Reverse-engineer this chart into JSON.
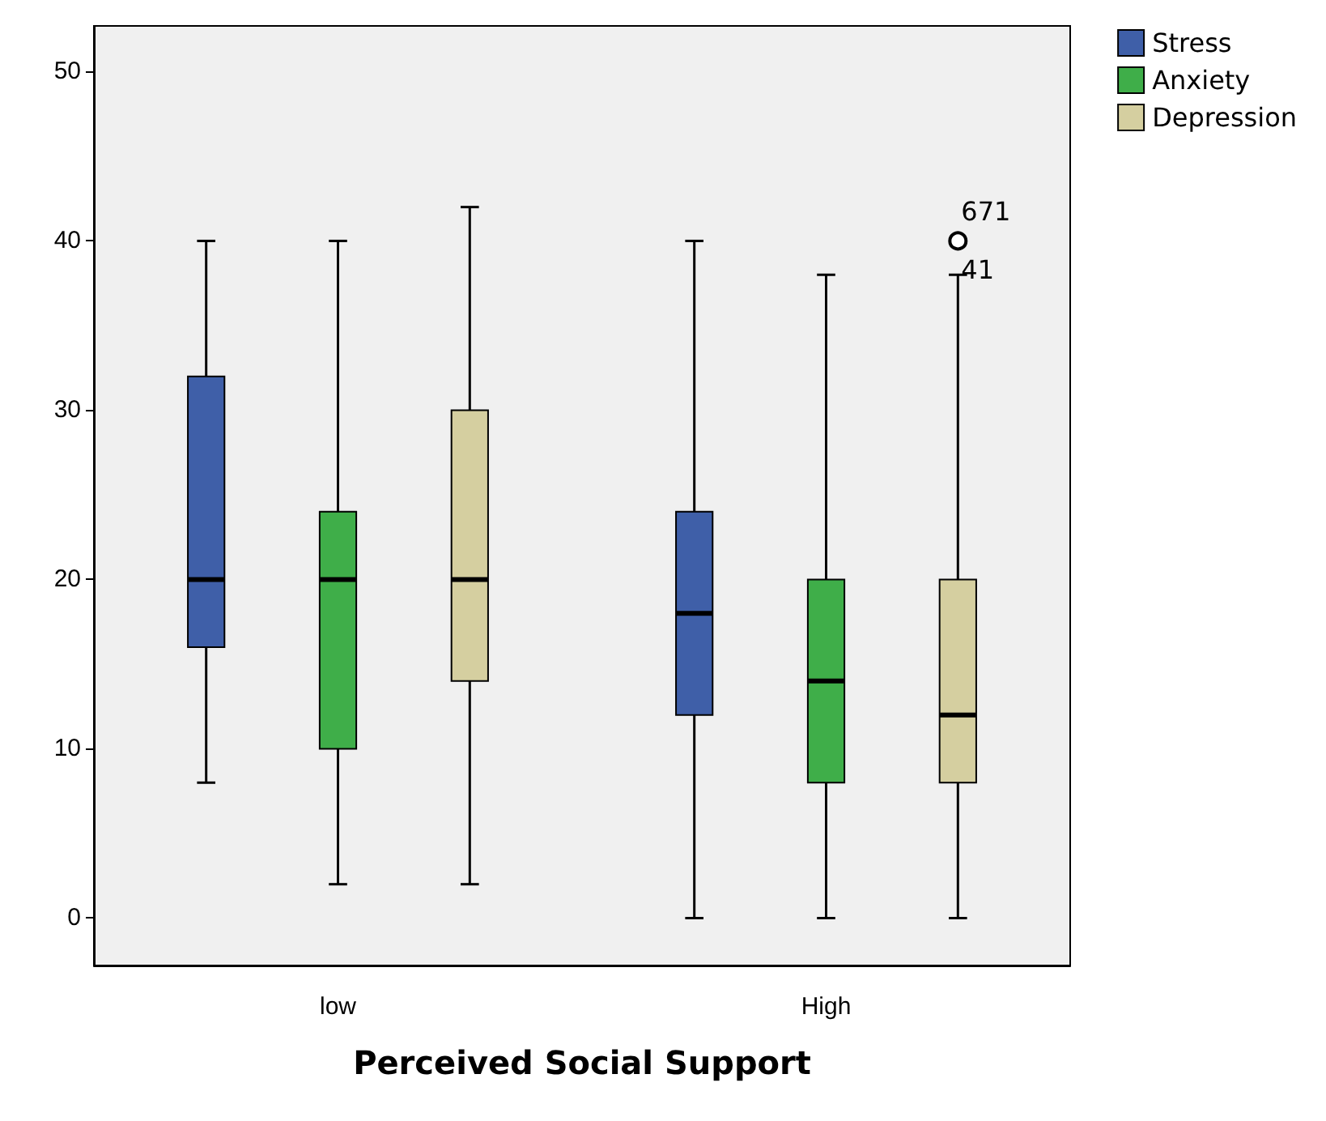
{
  "chart_data": {
    "type": "box",
    "xlabel": "Perceived Social Support",
    "categories": [
      "low",
      "High"
    ],
    "series": [
      {
        "name": "Stress",
        "color": "#3f5fa8",
        "boxes": [
          {
            "low": 8,
            "q1": 16,
            "median": 20,
            "q3": 32,
            "high": 40
          },
          {
            "low": 0,
            "q1": 12,
            "median": 18,
            "q3": 24,
            "high": 40
          }
        ]
      },
      {
        "name": "Anxiety",
        "color": "#3fae49",
        "boxes": [
          {
            "low": 2,
            "q1": 10,
            "median": 20,
            "q3": 24,
            "high": 40
          },
          {
            "low": 0,
            "q1": 8,
            "median": 14,
            "q3": 20,
            "high": 38
          }
        ]
      },
      {
        "name": "Depression",
        "color": "#d5cfa0",
        "boxes": [
          {
            "low": 2,
            "q1": 14,
            "median": 20,
            "q3": 30,
            "high": 42
          },
          {
            "low": 0,
            "q1": 8,
            "median": 12,
            "q3": 20,
            "high": 38,
            "outliers": [
              40
            ]
          }
        ]
      }
    ],
    "ylim": [
      -2.8,
      52.7
    ],
    "yticks": [
      0,
      10,
      20,
      30,
      40,
      50
    ],
    "grid": false,
    "legend": "top right",
    "annotations": [
      "671",
      "41"
    ]
  }
}
